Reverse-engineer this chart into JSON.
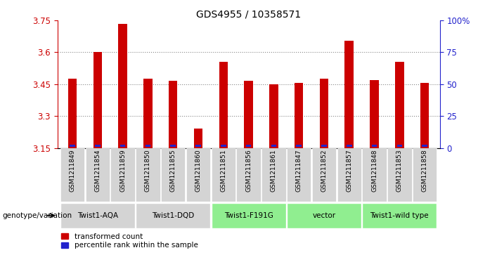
{
  "title": "GDS4955 / 10358571",
  "samples": [
    "GSM1211849",
    "GSM1211854",
    "GSM1211859",
    "GSM1211850",
    "GSM1211855",
    "GSM1211860",
    "GSM1211851",
    "GSM1211856",
    "GSM1211861",
    "GSM1211847",
    "GSM1211852",
    "GSM1211857",
    "GSM1211848",
    "GSM1211853",
    "GSM1211858"
  ],
  "red_values": [
    3.475,
    3.6,
    3.735,
    3.475,
    3.465,
    3.24,
    3.555,
    3.465,
    3.45,
    3.455,
    3.475,
    3.655,
    3.47,
    3.555,
    3.455
  ],
  "blue_pct": [
    3,
    3,
    3,
    3,
    3,
    5,
    3,
    3,
    3,
    3,
    3,
    3,
    3,
    3,
    3
  ],
  "y_min": 3.15,
  "y_max": 3.75,
  "y_ticks_left": [
    3.15,
    3.3,
    3.45,
    3.6,
    3.75
  ],
  "y_ticks_right": [
    0,
    25,
    50,
    75,
    100
  ],
  "groups": [
    {
      "label": "Twist1-AQA",
      "start": 0,
      "end": 3,
      "color": "#d4d4d4"
    },
    {
      "label": "Twist1-DQD",
      "start": 3,
      "end": 6,
      "color": "#d4d4d4"
    },
    {
      "label": "Twist1-F191G",
      "start": 6,
      "end": 9,
      "color": "#90ee90"
    },
    {
      "label": "vector",
      "start": 9,
      "end": 12,
      "color": "#90ee90"
    },
    {
      "label": "Twist1-wild type",
      "start": 12,
      "end": 15,
      "color": "#90ee90"
    }
  ],
  "bar_width": 0.35,
  "red_color": "#cc0000",
  "blue_color": "#2222cc",
  "axis_color_left": "#cc0000",
  "axis_color_right": "#2222cc",
  "genotype_label": "genotype/variation",
  "legend_red": "transformed count",
  "legend_blue": "percentile rank within the sample",
  "sample_bg_color": "#d4d4d4",
  "dotted_line_color": "#888888",
  "grid_lines": [
    3.3,
    3.45,
    3.6
  ]
}
